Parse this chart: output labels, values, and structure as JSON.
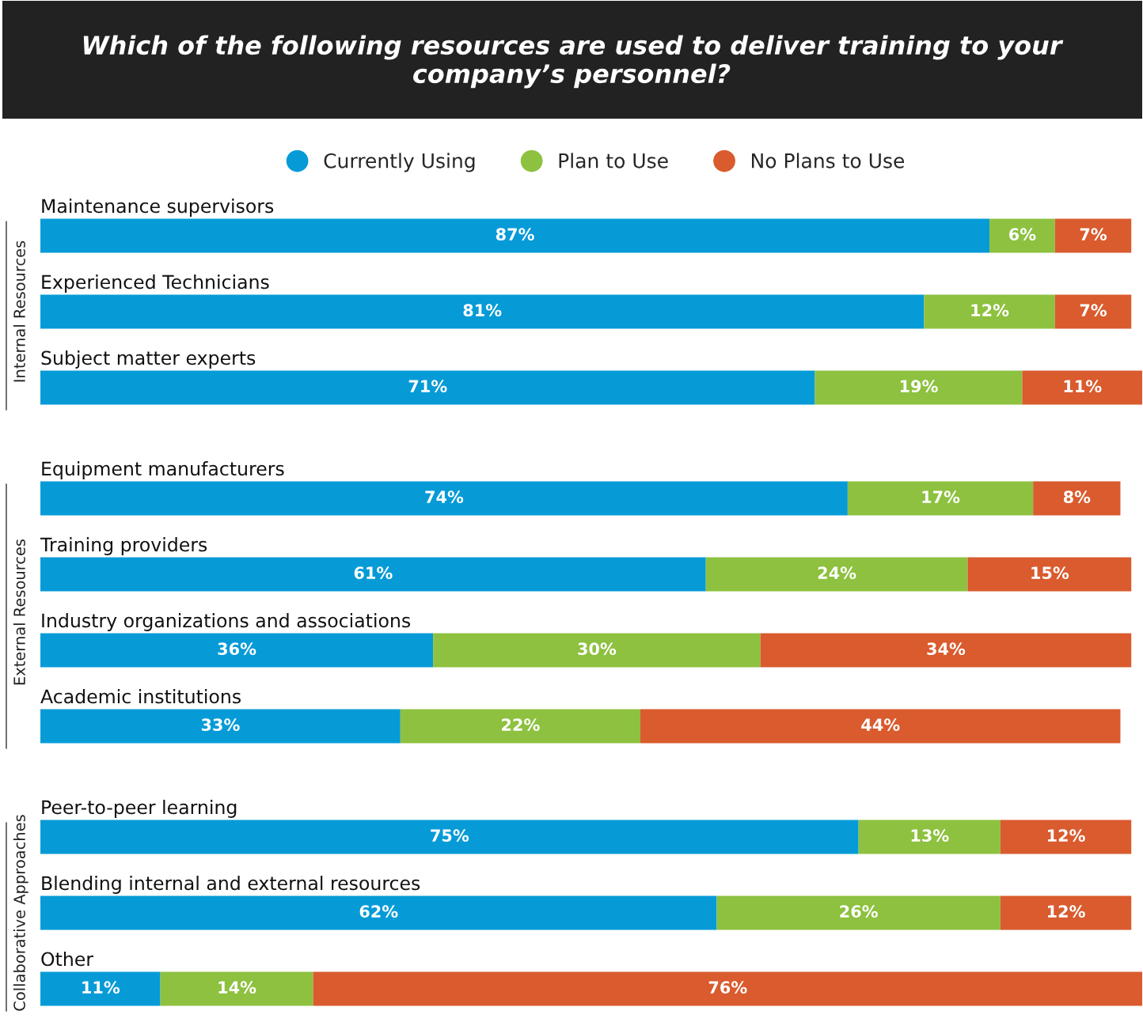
{
  "chart_data": [
    {
      "type": "bar",
      "orientation": "horizontal",
      "stacked": true,
      "title": "Which of the following resources are used to deliver training to your company’s personnel?",
      "ylabel": "Internal Resources",
      "legend": "top",
      "tick_labels": false,
      "categories": [
        "Maintenance supervisors",
        "Experienced Technicians",
        "Subject matter experts"
      ],
      "series": [
        {
          "name": "Currently Using",
          "color": "#069bd7",
          "values": [
            87,
            81,
            71
          ],
          "value_labels": [
            "87%",
            "81%",
            "71%"
          ]
        },
        {
          "name": "Plan to Use",
          "color": "#8dc13f",
          "values": [
            6,
            12,
            19
          ],
          "value_labels": [
            "6%",
            "12%",
            "19%"
          ]
        },
        {
          "name": "No Plans to Use",
          "color": "#d95b2e",
          "values": [
            7,
            7,
            11
          ],
          "value_labels": [
            "7%",
            "7%",
            "11%"
          ]
        }
      ]
    },
    {
      "type": "bar",
      "orientation": "horizontal",
      "stacked": true,
      "ylabel": "External Resources",
      "tick_labels": false,
      "categories": [
        "Equipment manufacturers",
        "Training providers",
        "Industry organizations and associations",
        "Academic institutions"
      ],
      "series": [
        {
          "color": "#069bd7",
          "values": [
            74,
            61,
            36,
            33
          ],
          "value_labels": [
            "74%",
            "61%",
            "36%",
            "33%"
          ]
        },
        {
          "color": "#8dc13f",
          "values": [
            17,
            24,
            30,
            22
          ],
          "value_labels": [
            "17%",
            "24%",
            "30%",
            "22%"
          ]
        },
        {
          "color": "#d95b2e",
          "values": [
            8,
            15,
            34,
            44
          ],
          "value_labels": [
            "8%",
            "15%",
            "34%",
            "44%"
          ]
        }
      ]
    },
    {
      "type": "bar",
      "orientation": "horizontal",
      "stacked": true,
      "ylabel": "Collaborative Approaches",
      "tick_labels": false,
      "categories": [
        "Peer-to-peer learning",
        "Blending internal and external resources",
        "Other"
      ],
      "series": [
        {
          "color": "#069bd7",
          "values": [
            75,
            62,
            11
          ],
          "value_labels": [
            "75%",
            "62%",
            "11%"
          ]
        },
        {
          "color": "#8dc13f",
          "values": [
            13,
            26,
            14
          ],
          "value_labels": [
            "13%",
            "26%",
            "14%"
          ]
        },
        {
          "color": "#d95b2e",
          "values": [
            12,
            12,
            76
          ],
          "value_labels": [
            "12%",
            "12%",
            "76%"
          ]
        }
      ]
    }
  ]
}
